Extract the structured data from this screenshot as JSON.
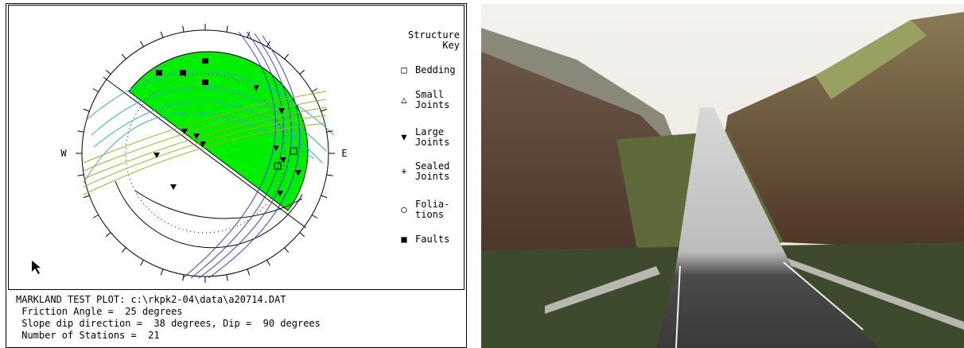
{
  "plot": {
    "west": "W",
    "east": "E"
  },
  "legend": {
    "title": [
      "Structure",
      "Key"
    ],
    "items": [
      {
        "symbol": "□",
        "lines": [
          "Bedding"
        ]
      },
      {
        "symbol": "△",
        "lines": [
          "Small",
          "Joints"
        ]
      },
      {
        "symbol": "▼",
        "lines": [
          "Large",
          "Joints"
        ]
      },
      {
        "symbol": "+",
        "lines": [
          "Sealed",
          "Joints"
        ]
      },
      {
        "symbol": "○",
        "lines": [
          "Folia-",
          "tions"
        ]
      },
      {
        "symbol": "■",
        "lines": [
          "Faults"
        ]
      }
    ]
  },
  "info": [
    "MARKLAND TEST PLOT: c:\\rkpk2-04\\data\\a20714.DAT",
    " Friction Angle =  25 degrees",
    " Slope dip direction =  38 degrees, Dip =  90 degrees",
    " Number of Stations =  21"
  ]
}
